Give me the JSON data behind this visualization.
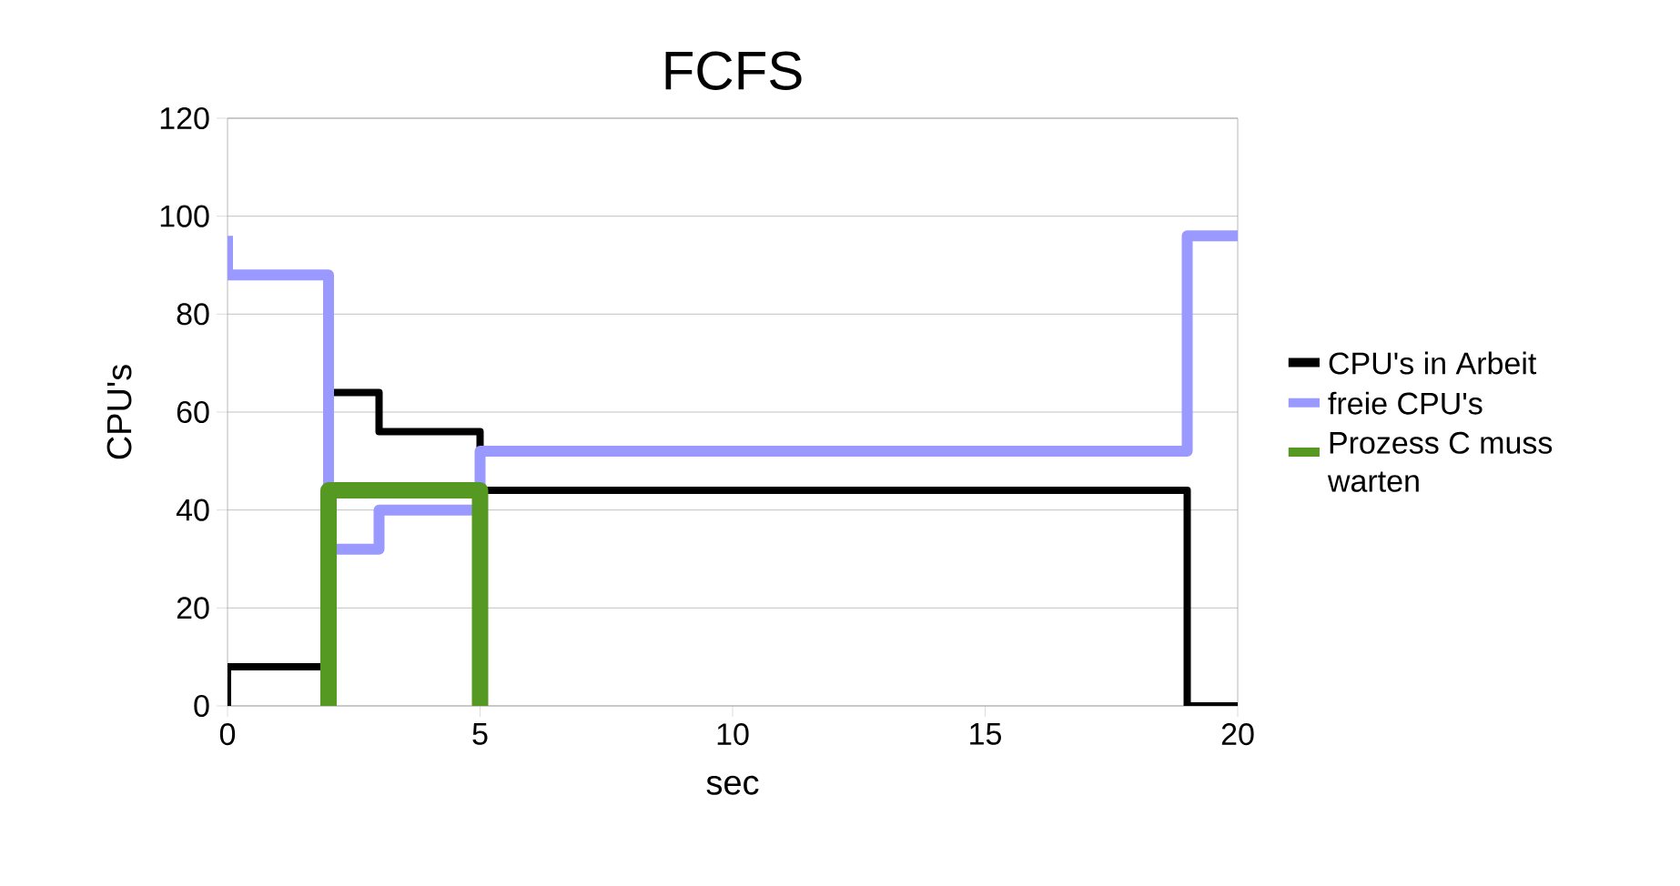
{
  "chart_data": {
    "type": "line",
    "title": "FCFS",
    "xlabel": "sec",
    "ylabel": "CPU's",
    "xlim": [
      0,
      20
    ],
    "ylim": [
      0,
      120
    ],
    "xticks": [
      0,
      5,
      10,
      15,
      20
    ],
    "yticks": [
      0,
      20,
      40,
      60,
      80,
      100,
      120
    ],
    "grid": "y",
    "legend": "right",
    "marker": "none",
    "line_style": "solid",
    "series": [
      {
        "name": "CPU's in Arbeit",
        "color": "#000000",
        "x": [
          0,
          0,
          2,
          2,
          3,
          3,
          5,
          5,
          19,
          19,
          20
        ],
        "values": [
          0,
          8,
          8,
          64,
          64,
          56,
          56,
          44,
          44,
          0,
          0
        ]
      },
      {
        "name": "freie CPU's",
        "color": "#9999ff",
        "x": [
          0,
          0,
          2,
          2,
          3,
          3,
          5,
          5,
          19,
          19,
          20
        ],
        "values": [
          96,
          88,
          88,
          32,
          32,
          40,
          40,
          52,
          52,
          96,
          96
        ]
      },
      {
        "name": "Prozess C muss warten",
        "color": "#559922",
        "x": [
          2,
          2,
          5,
          5
        ],
        "values": [
          0,
          44,
          44,
          0
        ]
      }
    ]
  }
}
